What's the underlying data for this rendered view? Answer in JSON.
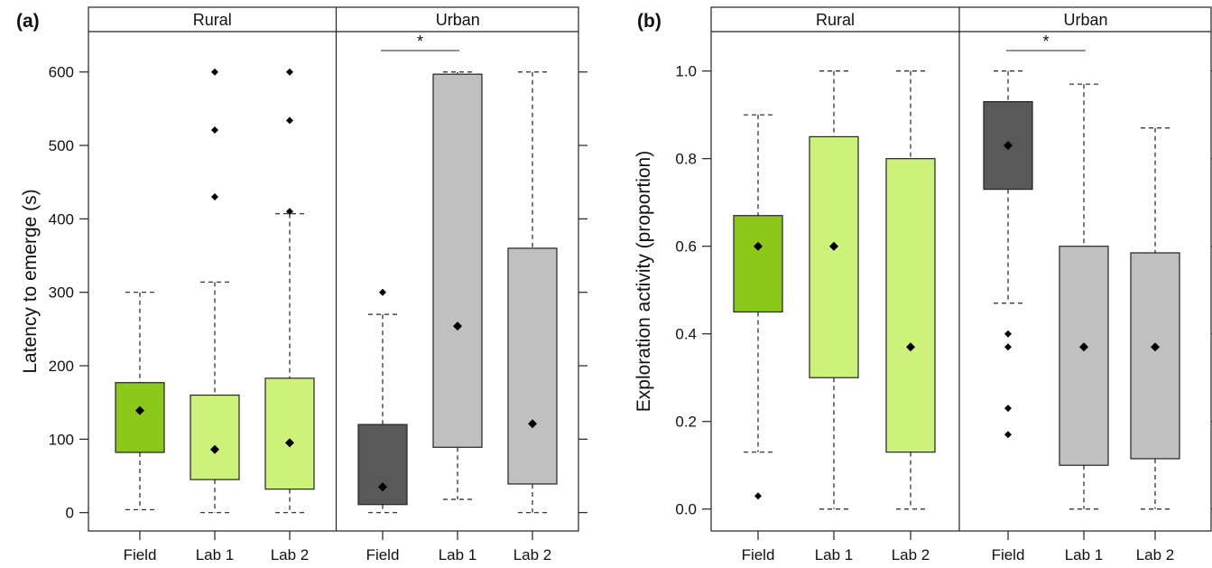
{
  "chart_data": [
    {
      "type": "box",
      "panel_label": "(a)",
      "ylabel": "Latency to emerge (s)",
      "ylim": [
        -25,
        655
      ],
      "yticks": [
        0,
        100,
        200,
        300,
        400,
        500,
        600
      ],
      "ytick_labels": [
        "0",
        "100",
        "200",
        "300",
        "400",
        "500",
        "600"
      ],
      "facets": [
        "Rural",
        "Urban"
      ],
      "significance": [
        {
          "facet": "Urban",
          "from": "Field",
          "to": "Lab 1",
          "label": "*"
        }
      ],
      "groups": [
        {
          "facet": "Rural",
          "label": "Field",
          "color": "#8cc819",
          "whisker_low": 4,
          "q1": 82,
          "q3": 177,
          "whisker_high": 300,
          "median": 139,
          "outliers": []
        },
        {
          "facet": "Rural",
          "label": "Lab 1",
          "color": "#cdf27a",
          "whisker_low": 0,
          "q1": 45,
          "q3": 160,
          "whisker_high": 314,
          "median": 86,
          "outliers": [
            430,
            521,
            600
          ]
        },
        {
          "facet": "Rural",
          "label": "Lab 2",
          "color": "#cdf27a",
          "whisker_low": 0,
          "q1": 32,
          "q3": 183,
          "whisker_high": 407,
          "median": 95,
          "outliers": [
            410,
            534,
            600
          ]
        },
        {
          "facet": "Urban",
          "label": "Field",
          "color": "#595959",
          "whisker_low": 0,
          "q1": 11,
          "q3": 120,
          "whisker_high": 270,
          "median": 35,
          "outliers": [
            300
          ]
        },
        {
          "facet": "Urban",
          "label": "Lab 1",
          "color": "#c0c0c0",
          "whisker_low": 18,
          "q1": 89,
          "q3": 597,
          "whisker_high": 600,
          "median": 254,
          "outliers": []
        },
        {
          "facet": "Urban",
          "label": "Lab 2",
          "color": "#c0c0c0",
          "whisker_low": 0,
          "q1": 39,
          "q3": 360,
          "whisker_high": 600,
          "median": 121,
          "outliers": []
        }
      ]
    },
    {
      "type": "box",
      "panel_label": "(b)",
      "ylabel": "Exploration activity (proportion)",
      "ylim": [
        -0.05,
        1.09
      ],
      "yticks": [
        0,
        0.2,
        0.4,
        0.6,
        0.8,
        1.0
      ],
      "ytick_labels": [
        "0.0",
        "0.2",
        "0.4",
        "0.6",
        "0.8",
        "1.0"
      ],
      "facets": [
        "Rural",
        "Urban"
      ],
      "significance": [
        {
          "facet": "Urban",
          "from": "Field",
          "to": "Lab 1",
          "label": "*"
        }
      ],
      "groups": [
        {
          "facet": "Rural",
          "label": "Field",
          "color": "#8cc819",
          "whisker_low": 0.13,
          "q1": 0.45,
          "q3": 0.67,
          "whisker_high": 0.9,
          "median": 0.6,
          "outliers": [
            0.03
          ]
        },
        {
          "facet": "Rural",
          "label": "Lab 1",
          "color": "#cdf27a",
          "whisker_low": 0.0,
          "q1": 0.3,
          "q3": 0.85,
          "whisker_high": 1.0,
          "median": 0.6,
          "outliers": []
        },
        {
          "facet": "Rural",
          "label": "Lab 2",
          "color": "#cdf27a",
          "whisker_low": 0.0,
          "q1": 0.13,
          "q3": 0.8,
          "whisker_high": 1.0,
          "median": 0.37,
          "outliers": []
        },
        {
          "facet": "Urban",
          "label": "Field",
          "color": "#595959",
          "whisker_low": 0.47,
          "q1": 0.73,
          "q3": 0.93,
          "whisker_high": 1.0,
          "median": 0.83,
          "outliers": [
            0.17,
            0.23,
            0.37,
            0.4
          ]
        },
        {
          "facet": "Urban",
          "label": "Lab 1",
          "color": "#c0c0c0",
          "whisker_low": 0.0,
          "q1": 0.1,
          "q3": 0.6,
          "whisker_high": 0.97,
          "median": 0.37,
          "outliers": []
        },
        {
          "facet": "Urban",
          "label": "Lab 2",
          "color": "#c0c0c0",
          "whisker_low": 0.0,
          "q1": 0.115,
          "q3": 0.585,
          "whisker_high": 0.87,
          "median": 0.37,
          "outliers": []
        }
      ]
    }
  ]
}
